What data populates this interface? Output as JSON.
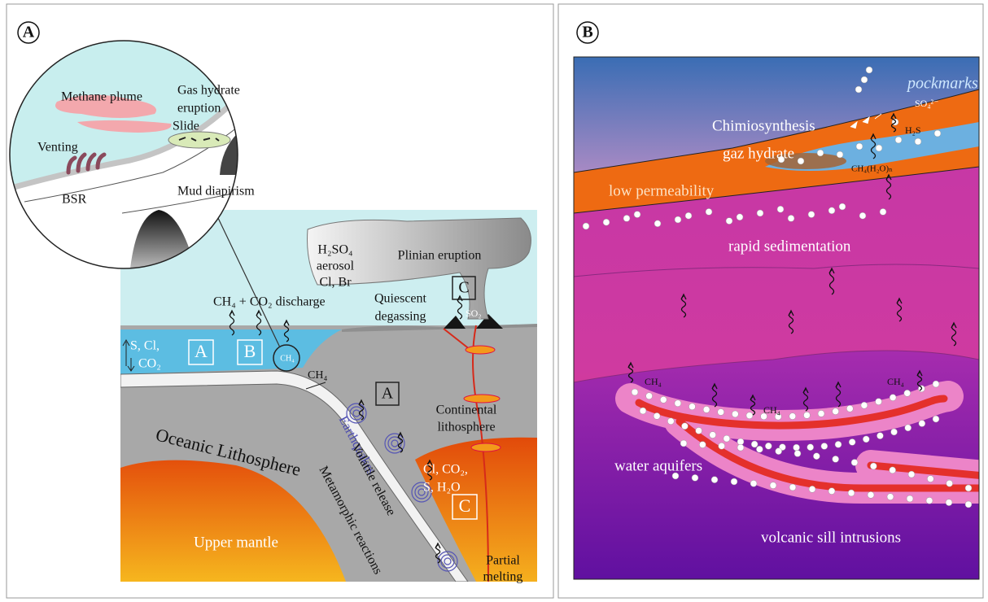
{
  "panel_a": {
    "label": "A",
    "inset": {
      "methane_plume": "Methane plume",
      "gas_hydrate_eruption": [
        "Gas hydrate",
        "eruption"
      ],
      "slide": "Slide",
      "venting": "Venting",
      "bsr": "BSR",
      "mud_diapirism": "Mud diapirism"
    },
    "main": {
      "aerosol": [
        "H₂SO₄",
        "aerosol",
        "Cl, Br"
      ],
      "plinian_eruption": "Plinian eruption",
      "discharge": "CH₄ + CO₂ discharge",
      "quiescent_degassing": [
        "Quiescent",
        "degassing"
      ],
      "box_c_top": "C",
      "so2": "SO₂",
      "ocean_volatiles": [
        "S, Cl,",
        "CO₂"
      ],
      "box_a_ocean": "A",
      "box_b": "B",
      "ch4_bubble": "CH₄",
      "ch4_slab": "CH₄",
      "box_a_slab": "A",
      "continental_lithosphere": [
        "Continental",
        "lithosphere"
      ],
      "oceanic_lithosphere": "Oceanic Lithosphere",
      "earthquakes": "Earthquakes",
      "volatile_release": "Volatile release",
      "metamorphic_reactions": "Metamorphic reactions",
      "mantle_volatiles": [
        "Cl, CO₂,",
        "S, H₂O"
      ],
      "box_c_mantle": "C",
      "upper_mantle": "Upper mantle",
      "partial_melting": [
        "Partial",
        "melting"
      ]
    }
  },
  "panel_b": {
    "label": "B",
    "pockmarks": "pockmarks",
    "sulfate": "SO₄²⁻",
    "chimiosynthesis": "Chimiosynthesis",
    "h2s": "H₂S",
    "gaz_hydrate": "gaz hydrate",
    "hydrate_formula": "CH₄(H₂O)ₙ",
    "low_permeability": "low permeability",
    "rapid_sedimentation": "rapid sedimentation",
    "ch4_labels": [
      "CH₄",
      "CH₄",
      "CH₄"
    ],
    "water_aquifers": "water aquifers",
    "sill_intrusions": "volcanic sill intrusions"
  }
}
